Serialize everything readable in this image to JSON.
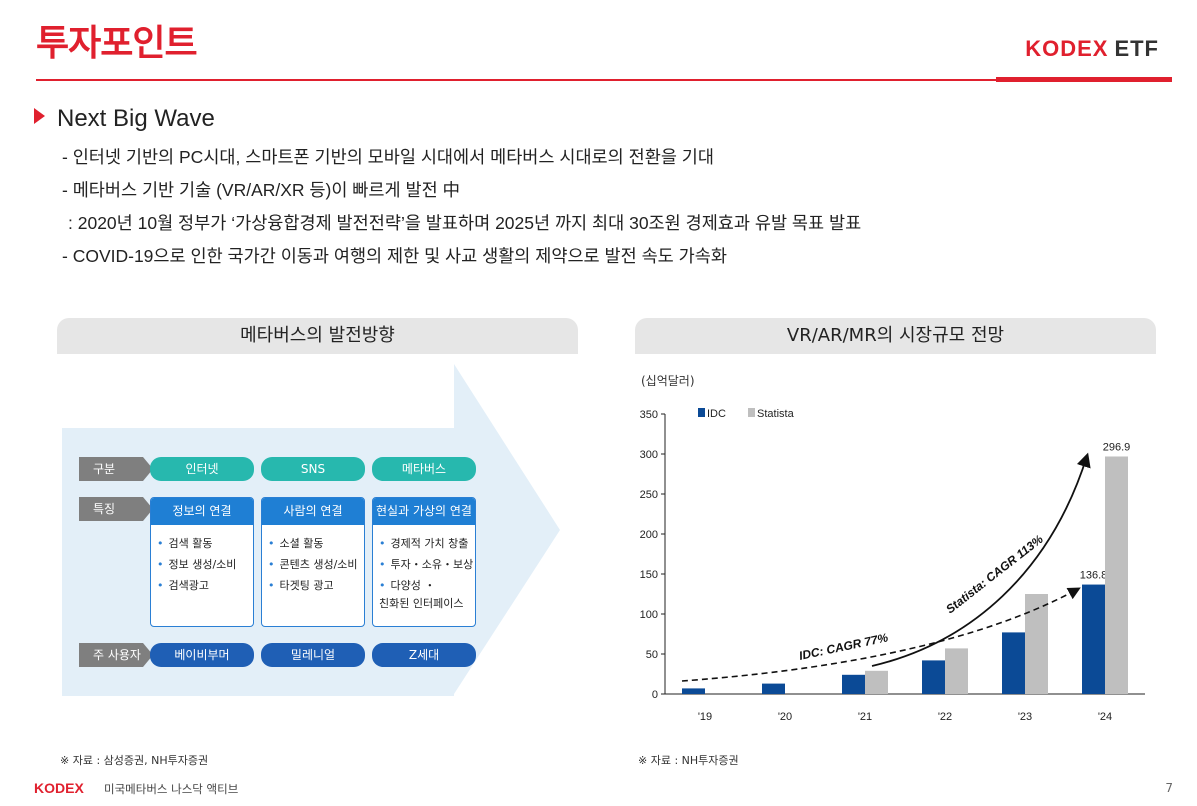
{
  "header": {
    "title": "투자포인트",
    "logo_main": "KODEX",
    "logo_suffix": "ETF"
  },
  "section": {
    "heading": "Next Big Wave",
    "bullets": [
      "- 인터넷 기반의 PC시대, 스마트폰 기반의 모바일 시대에서 메타버스 시대로의 전환을 기대",
      "- 메타버스 기반 기술 (VR/AR/XR 등)이 빠르게 발전 中",
      " : 2020년 10월 정부가 ‘가상융합경제 발전전략’을 발표하며 2025년 까지 최대 30조원 경제효과 유발 목표 발표",
      "- COVID-19으로 인한 국가간 이동과 여행의 제한 및 사교 생활의 제약으로 발전 속도 가속화"
    ]
  },
  "left_panel": {
    "title": "메타버스의 발전방향",
    "row_labels": {
      "category": "구분",
      "feature": "특징",
      "users": "주 사용자"
    },
    "columns": [
      {
        "name": "인터넷",
        "feature_title": "정보의 연결",
        "features": [
          "검색 활동",
          "정보 생성/소비",
          "검색광고"
        ],
        "user": "베이비부머"
      },
      {
        "name": "SNS",
        "feature_title": "사람의 연결",
        "features": [
          "소셜 활동",
          "콘텐츠 생성/소비",
          "타겟팅 광고"
        ],
        "user": "밀레니얼"
      },
      {
        "name": "메타버스",
        "feature_title": "현실과 가상의 연결",
        "features": [
          "경제적 가치 창출",
          "투자・소유・보상",
          "다양성 ・\n친화된 인터페이스"
        ],
        "user": "Z세대"
      }
    ],
    "source": "※ 자료 : 삼성증권, NH투자증권"
  },
  "right_panel": {
    "title": "VR/AR/MR의 시장규모 전망",
    "unit": "(십억달러)",
    "source": "※ 자료 : NH투자증권"
  },
  "chart_data": {
    "type": "bar",
    "categories": [
      "'19",
      "'20",
      "'21",
      "'22",
      "'23",
      "'24"
    ],
    "series": [
      {
        "name": "IDC",
        "values": [
          7,
          13,
          24,
          42,
          77,
          136.8
        ],
        "color": "#0b4a96"
      },
      {
        "name": "Statista",
        "values": [
          null,
          null,
          29,
          57,
          125,
          296.9
        ],
        "color": "#bfbfbf"
      }
    ],
    "data_labels": {
      "IDC": {
        "5": "136.8"
      },
      "Statista": {
        "5": "296.9"
      }
    },
    "ylim": [
      0,
      350
    ],
    "yticks": [
      0,
      50,
      100,
      150,
      200,
      250,
      300,
      350
    ],
    "legend": "top-left",
    "grid": false,
    "annotations": [
      "IDC: CAGR 77%",
      "Statista: CAGR 113%"
    ]
  },
  "footer": {
    "logo": "KODEX",
    "subtitle": "미국메타버스 나스닥 액티브",
    "page": "7"
  }
}
